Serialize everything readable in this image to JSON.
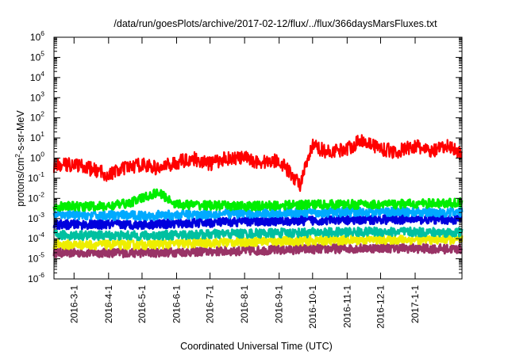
{
  "chart_data": {
    "type": "line",
    "title": "/data/run/goesPlots/archive/2017-02-12/flux/../flux/366daysMarsFluxes.txt",
    "xlabel": "Coordinated Universal Time (UTC)",
    "ylabel_base": "protons/cm",
    "ylabel_exp": "2",
    "ylabel_rest": "-s-sr-MeV",
    "y_scale": "log",
    "ylim": [
      1e-06,
      1000000.0
    ],
    "y_ticks": [
      {
        "value": 1e-06,
        "base": "10",
        "exp": "-6"
      },
      {
        "value": 1e-05,
        "base": "10",
        "exp": "-5"
      },
      {
        "value": 0.0001,
        "base": "10",
        "exp": "-4"
      },
      {
        "value": 0.001,
        "base": "10",
        "exp": "-3"
      },
      {
        "value": 0.01,
        "base": "10",
        "exp": "-2"
      },
      {
        "value": 0.1,
        "base": "10",
        "exp": "-1"
      },
      {
        "value": 1.0,
        "base": "10",
        "exp": "0"
      },
      {
        "value": 10.0,
        "base": "10",
        "exp": "1"
      },
      {
        "value": 100.0,
        "base": "10",
        "exp": "2"
      },
      {
        "value": 1000.0,
        "base": "10",
        "exp": "3"
      },
      {
        "value": 10000.0,
        "base": "10",
        "exp": "4"
      },
      {
        "value": 100000.0,
        "base": "10",
        "exp": "5"
      },
      {
        "value": 1000000.0,
        "base": "10",
        "exp": "6"
      }
    ],
    "xlim": [
      "2016-02-12",
      "2017-02-12"
    ],
    "x_ticks": [
      "2016-3-1",
      "2016-4-1",
      "2016-5-1",
      "2016-6-1",
      "2016-7-1",
      "2016-8-1",
      "2016-9-1",
      "2016-10-1",
      "2016-11-1",
      "2016-12-1",
      "2017-1-1"
    ],
    "x_tick_dates": [
      "2016-03-01",
      "2016-04-01",
      "2016-05-01",
      "2016-06-01",
      "2016-07-01",
      "2016-08-01",
      "2016-09-01",
      "2016-10-01",
      "2016-11-01",
      "2016-12-01",
      "2017-01-01"
    ],
    "grid": false,
    "legend": "none",
    "series": [
      {
        "color": "#ff0000",
        "x": [
          "2016-02-12",
          "2016-03-01",
          "2016-03-15",
          "2016-04-01",
          "2016-04-15",
          "2016-05-01",
          "2016-05-15",
          "2016-06-01",
          "2016-06-15",
          "2016-07-01",
          "2016-07-15",
          "2016-08-01",
          "2016-08-15",
          "2016-09-01",
          "2016-09-10",
          "2016-09-20",
          "2016-10-01",
          "2016-10-15",
          "2016-11-01",
          "2016-11-15",
          "2016-12-01",
          "2016-12-15",
          "2017-01-01",
          "2017-01-15",
          "2017-02-01",
          "2017-02-12"
        ],
        "y": [
          0.4,
          0.5,
          0.3,
          0.15,
          0.3,
          0.5,
          0.3,
          0.6,
          1,
          0.5,
          1,
          1,
          0.6,
          0.8,
          0.2,
          0.05,
          4,
          2,
          3,
          8,
          3,
          2,
          4,
          2,
          4,
          1.5
        ]
      },
      {
        "color": "#00ee00",
        "x": [
          "2016-02-12",
          "2016-04-01",
          "2016-04-20",
          "2016-05-15",
          "2016-06-01",
          "2016-08-01",
          "2016-10-01",
          "2016-12-01",
          "2017-02-12"
        ],
        "y": [
          0.004,
          0.004,
          0.006,
          0.02,
          0.005,
          0.004,
          0.005,
          0.005,
          0.006
        ]
      },
      {
        "color": "#00aaff",
        "x": [
          "2016-02-12",
          "2016-05-01",
          "2016-08-01",
          "2016-10-01",
          "2016-12-01",
          "2017-02-12"
        ],
        "y": [
          0.0015,
          0.0014,
          0.0018,
          0.002,
          0.0022,
          0.002
        ]
      },
      {
        "color": "#0000dd",
        "x": [
          "2016-02-12",
          "2016-05-01",
          "2016-08-01",
          "2016-10-01",
          "2016-12-01",
          "2017-02-12"
        ],
        "y": [
          0.0005,
          0.0005,
          0.0007,
          0.0008,
          0.0009,
          0.0009
        ]
      },
      {
        "color": "#00c0a0",
        "x": [
          "2016-02-12",
          "2016-05-01",
          "2016-08-01",
          "2016-10-01",
          "2016-12-01",
          "2017-02-12"
        ],
        "y": [
          0.00015,
          0.00014,
          0.00018,
          0.0002,
          0.00022,
          0.0002
        ]
      },
      {
        "color": "#eeee00",
        "x": [
          "2016-02-12",
          "2016-05-01",
          "2016-08-01",
          "2016-10-01",
          "2016-12-01",
          "2017-02-12"
        ],
        "y": [
          5e-05,
          5e-05,
          7e-05,
          8e-05,
          9e-05,
          9e-05
        ]
      },
      {
        "color": "#993366",
        "x": [
          "2016-02-12",
          "2016-05-01",
          "2016-08-01",
          "2016-10-01",
          "2016-12-01",
          "2017-02-12"
        ],
        "y": [
          2e-05,
          2e-05,
          2.5e-05,
          3e-05,
          3.5e-05,
          3e-05
        ]
      }
    ]
  }
}
